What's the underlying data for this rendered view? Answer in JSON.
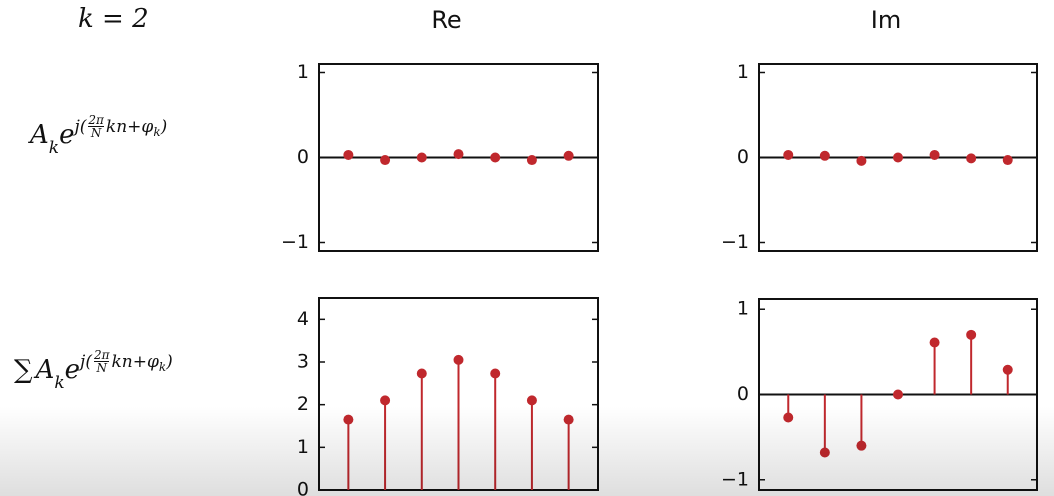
{
  "header": {
    "k_label": "k = 2"
  },
  "row_labels": [
    [
      "A",
      "k",
      "e",
      "j(",
      "2π",
      "N",
      "kn+",
      "φ",
      "k",
      ")"
    ],
    [
      "∑",
      "A",
      "k",
      "e",
      "j(",
      "2π",
      "N",
      "kn+",
      "φ",
      "k",
      ")"
    ]
  ],
  "chart_data": [
    {
      "type": "stem",
      "title": "Re",
      "x": [
        0,
        1,
        2,
        3,
        4,
        5,
        6
      ],
      "values": [
        0.03,
        -0.03,
        0,
        0.04,
        0,
        -0.03,
        0.02
      ],
      "color": "#c0282d",
      "xlim": [
        -0.8,
        6.8
      ],
      "ylim": [
        -1.1,
        1.1
      ],
      "yticks": [
        {
          "value": -1,
          "label": "−1"
        },
        0,
        1
      ],
      "zero_line": true
    },
    {
      "type": "stem",
      "title": "Im",
      "x": [
        0,
        1,
        2,
        3,
        4,
        5,
        6
      ],
      "values": [
        0.03,
        0.02,
        -0.04,
        0,
        0.03,
        -0.01,
        -0.03
      ],
      "color": "#c0282d",
      "xlim": [
        -0.8,
        6.8
      ],
      "ylim": [
        -1.1,
        1.1
      ],
      "yticks": [
        {
          "value": -1,
          "label": "−1"
        },
        0,
        1
      ],
      "zero_line": true
    },
    {
      "type": "stem",
      "x": [
        0,
        1,
        2,
        3,
        4,
        5,
        6
      ],
      "values": [
        1.65,
        2.1,
        2.73,
        3.05,
        2.73,
        2.1,
        1.65
      ],
      "color": "#c0282d",
      "xlim": [
        -0.8,
        6.8
      ],
      "ylim": [
        0,
        4.5
      ],
      "yticks": [
        0,
        1,
        2,
        3,
        4
      ],
      "zero_line": false
    },
    {
      "type": "stem",
      "x": [
        0,
        1,
        2,
        3,
        4,
        5,
        6
      ],
      "values": [
        -0.27,
        -0.68,
        -0.6,
        0,
        0.61,
        0.7,
        0.29
      ],
      "color": "#c0282d",
      "xlim": [
        -0.8,
        6.8
      ],
      "ylim": [
        -1.12,
        1.12
      ],
      "yticks": [
        {
          "value": -1,
          "label": "−1"
        },
        0,
        1
      ],
      "zero_line": true
    }
  ]
}
